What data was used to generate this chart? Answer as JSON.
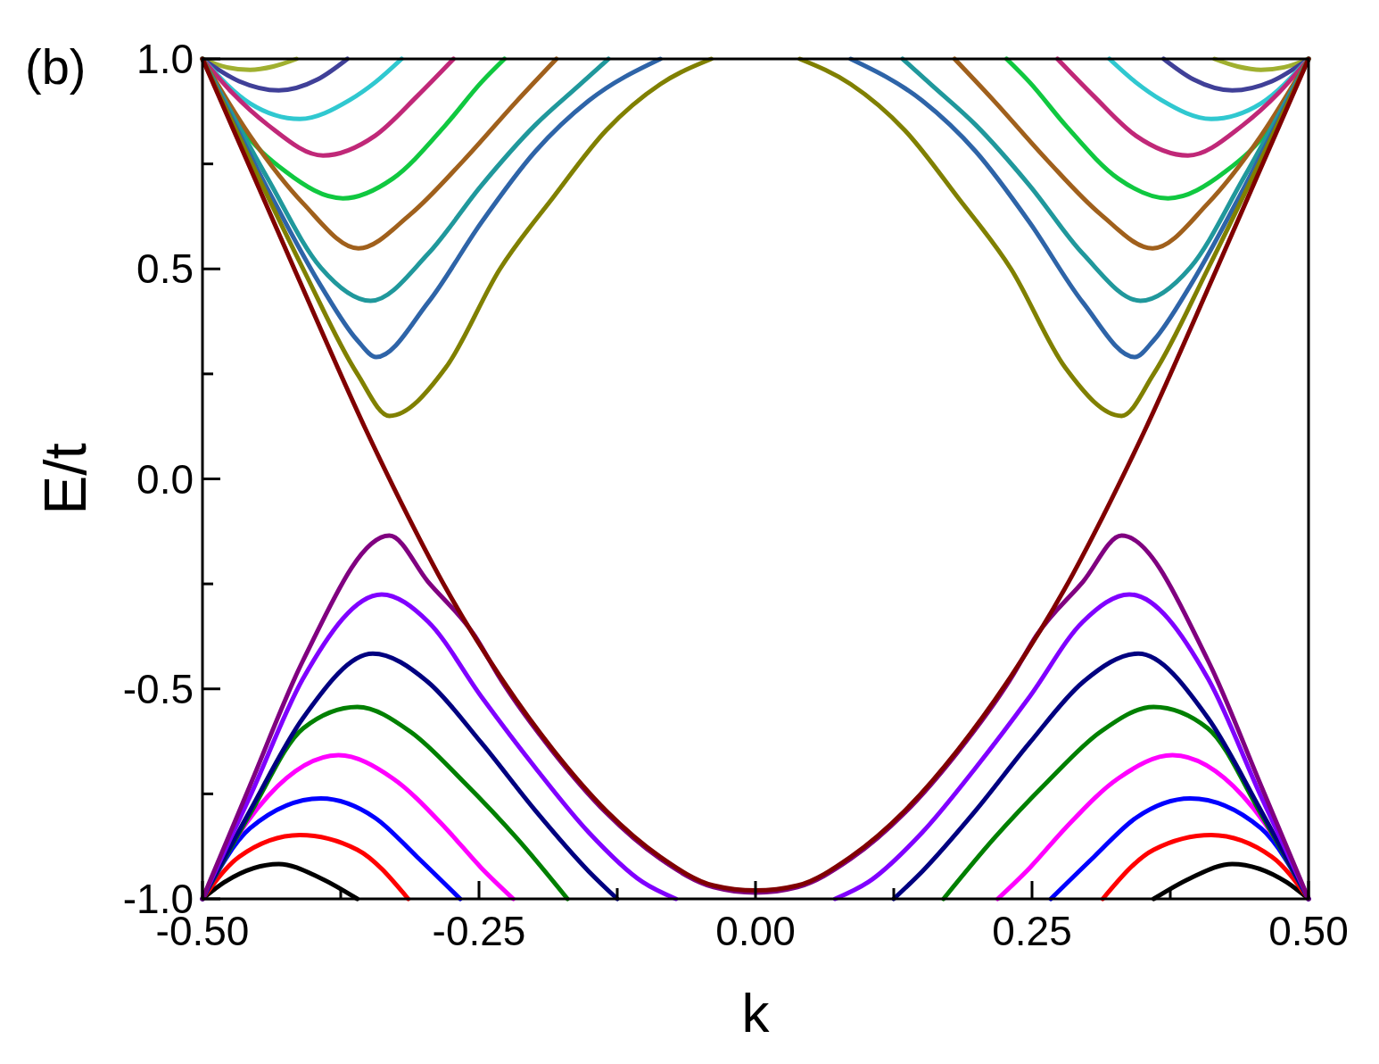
{
  "chart_data": {
    "type": "line",
    "xlabel": "k",
    "ylabel": "E/t",
    "annotations": [
      "(b)"
    ],
    "xlim": [
      -0.5,
      0.5
    ],
    "ylim": [
      -1,
      1
    ],
    "xticks": [
      {
        "value": -0.5,
        "label": "-0.50"
      },
      {
        "value": -0.375,
        "label": null
      },
      {
        "value": -0.25,
        "label": "-0.25"
      },
      {
        "value": -0.125,
        "label": null
      },
      {
        "value": 0,
        "label": "0.00"
      },
      {
        "value": 0.125,
        "label": null
      },
      {
        "value": 0.25,
        "label": "0.25"
      },
      {
        "value": 0.375,
        "label": null
      },
      {
        "value": 0.5,
        "label": "0.50"
      }
    ],
    "yticks": [
      {
        "value": -1,
        "label": "-1.0"
      },
      {
        "value": -0.75,
        "label": null
      },
      {
        "value": -0.5,
        "label": "-0.5"
      },
      {
        "value": -0.25,
        "label": null
      },
      {
        "value": 0,
        "label": "0.0"
      },
      {
        "value": 0.25,
        "label": null
      },
      {
        "value": 0.5,
        "label": "0.5"
      },
      {
        "value": 0.75,
        "label": null
      },
      {
        "value": 1,
        "label": "1.0"
      }
    ],
    "series": [
      {
        "color": "#a0b030",
        "x": [
          -0.5,
          -0.478,
          -0.457,
          -0.436,
          -0.415,
          0,
          0.415,
          0.436,
          0.457,
          0.478,
          0.5
        ],
        "values": [
          1,
          0.98,
          0.974,
          0.982,
          1,
          null,
          1,
          0.982,
          0.974,
          0.98,
          1
        ]
      },
      {
        "color": "#404098",
        "x": [
          -0.5,
          -0.467,
          -0.431,
          -0.396,
          -0.369,
          0,
          0.369,
          0.396,
          0.431,
          0.467,
          0.5
        ],
        "values": [
          1,
          0.947,
          0.925,
          0.951,
          1,
          null,
          1,
          0.951,
          0.925,
          0.947,
          1
        ]
      },
      {
        "color": "#30c8d0",
        "x": [
          -0.5,
          -0.457,
          -0.412,
          -0.367,
          -0.344,
          -0.32,
          0,
          0.32,
          0.344,
          0.367,
          0.412,
          0.457,
          0.5
        ],
        "values": [
          1,
          0.894,
          0.857,
          0.902,
          0.944,
          1,
          null,
          1,
          0.944,
          0.902,
          0.857,
          0.894,
          1
        ]
      },
      {
        "color": "#c02878",
        "x": [
          -0.5,
          -0.473,
          -0.441,
          -0.391,
          -0.344,
          -0.306,
          -0.273,
          0,
          0.273,
          0.306,
          0.344,
          0.391,
          0.441,
          0.473,
          0.5
        ],
        "values": [
          1,
          0.919,
          0.843,
          0.77,
          0.817,
          0.911,
          1,
          null,
          1,
          0.911,
          0.817,
          0.77,
          0.843,
          0.919,
          1
        ]
      },
      {
        "color": "#10c840",
        "x": [
          -0.5,
          -0.467,
          -0.425,
          -0.373,
          -0.328,
          -0.28,
          -0.248,
          -0.227,
          0,
          0.227,
          0.248,
          0.28,
          0.328,
          0.373,
          0.425,
          0.467,
          0.5
        ],
        "values": [
          1,
          0.843,
          0.732,
          0.668,
          0.715,
          0.843,
          0.944,
          1,
          null,
          1,
          0.944,
          0.843,
          0.715,
          0.668,
          0.732,
          0.843,
          1
        ]
      },
      {
        "color": "#a0601c",
        "x": [
          -0.5,
          -0.457,
          -0.409,
          -0.359,
          -0.312,
          -0.264,
          -0.215,
          -0.18,
          0,
          0.18,
          0.215,
          0.264,
          0.312,
          0.359,
          0.409,
          0.457,
          0.5
        ],
        "values": [
          1,
          0.817,
          0.656,
          0.549,
          0.63,
          0.758,
          0.902,
          1,
          null,
          1,
          0.902,
          0.758,
          0.63,
          0.549,
          0.656,
          0.817,
          1
        ]
      },
      {
        "color": "#20989c",
        "x": [
          -0.5,
          -0.441,
          -0.393,
          -0.348,
          -0.296,
          -0.248,
          -0.199,
          -0.16,
          -0.133,
          0,
          0.133,
          0.16,
          0.199,
          0.248,
          0.296,
          0.348,
          0.393,
          0.441,
          0.5
        ],
        "values": [
          1,
          0.715,
          0.503,
          0.424,
          0.536,
          0.698,
          0.843,
          0.936,
          1,
          null,
          1,
          0.936,
          0.843,
          0.698,
          0.536,
          0.424,
          0.503,
          0.715,
          1
        ]
      },
      {
        "color": "#2e64a8",
        "x": [
          -0.5,
          -0.441,
          -0.393,
          -0.36,
          -0.343,
          -0.296,
          -0.248,
          -0.199,
          -0.151,
          -0.086,
          0,
          0.086,
          0.151,
          0.199,
          0.248,
          0.296,
          0.343,
          0.36,
          0.393,
          0.441,
          0.5
        ],
        "values": [
          1,
          0.69,
          0.46,
          0.33,
          0.29,
          0.42,
          0.61,
          0.78,
          0.9,
          1,
          null,
          1,
          0.9,
          0.78,
          0.61,
          0.42,
          0.29,
          0.33,
          0.46,
          0.69,
          1
        ]
      },
      {
        "color": "#808000",
        "x": [
          -0.5,
          -0.457,
          -0.409,
          -0.36,
          -0.331,
          -0.28,
          -0.231,
          -0.183,
          -0.135,
          -0.086,
          -0.04,
          0,
          0.04,
          0.086,
          0.135,
          0.183,
          0.231,
          0.28,
          0.331,
          0.36,
          0.409,
          0.457,
          0.5
        ],
        "values": [
          1,
          0.76,
          0.5,
          0.25,
          0.15,
          0.265,
          0.5,
          0.67,
          0.83,
          0.94,
          1,
          null,
          1,
          0.94,
          0.83,
          0.67,
          0.5,
          0.265,
          0.15,
          0.25,
          0.5,
          0.76,
          1
        ]
      },
      {
        "color": "#000000",
        "x": [
          -0.5,
          -0.48,
          -0.431,
          -0.393,
          -0.36,
          0,
          0.36,
          0.393,
          0.431,
          0.48,
          0.5
        ],
        "values": [
          -1,
          -0.96,
          -0.917,
          -0.951,
          -1,
          null,
          -1,
          -0.951,
          -0.917,
          -0.96,
          -1
        ]
      },
      {
        "color": "#ff0000",
        "x": [
          -0.5,
          -0.467,
          -0.412,
          -0.36,
          -0.314,
          0,
          0.314,
          0.36,
          0.412,
          0.467,
          0.5
        ],
        "values": [
          -1,
          -0.9,
          -0.848,
          -0.883,
          -1,
          null,
          -1,
          -0.883,
          -0.848,
          -0.9,
          -1
        ]
      },
      {
        "color": "#0000ff",
        "x": [
          -0.5,
          -0.457,
          -0.393,
          -0.344,
          -0.306,
          -0.267,
          0,
          0.267,
          0.306,
          0.344,
          0.393,
          0.457,
          0.5
        ],
        "values": [
          -1,
          -0.832,
          -0.761,
          -0.807,
          -0.9,
          -1,
          null,
          -1,
          -0.9,
          -0.807,
          -0.761,
          -0.832,
          -1
        ]
      },
      {
        "color": "#ff00ff",
        "x": [
          -0.5,
          -0.48,
          -0.441,
          -0.377,
          -0.328,
          -0.28,
          -0.248,
          -0.219,
          0,
          0.219,
          0.248,
          0.28,
          0.328,
          0.377,
          0.441,
          0.48,
          0.5
        ],
        "values": [
          -1,
          -0.9,
          -0.756,
          -0.658,
          -0.713,
          -0.832,
          -0.926,
          -1,
          null,
          -1,
          -0.926,
          -0.832,
          -0.713,
          -0.658,
          -0.756,
          -0.9,
          -1
        ]
      },
      {
        "color": "#008000",
        "x": [
          -0.5,
          -0.457,
          -0.409,
          -0.36,
          -0.312,
          -0.264,
          -0.215,
          -0.17,
          0,
          0.17,
          0.215,
          0.264,
          0.312,
          0.36,
          0.409,
          0.457,
          0.5
        ],
        "values": [
          -1,
          -0.798,
          -0.594,
          -0.543,
          -0.602,
          -0.721,
          -0.858,
          -1,
          null,
          -1,
          -0.858,
          -0.721,
          -0.602,
          -0.543,
          -0.594,
          -0.798,
          -1
        ]
      },
      {
        "color": "#000080",
        "x": [
          -0.5,
          -0.457,
          -0.409,
          -0.346,
          -0.296,
          -0.248,
          -0.199,
          -0.151,
          -0.125,
          0,
          0.125,
          0.151,
          0.199,
          0.248,
          0.296,
          0.346,
          0.409,
          0.457,
          0.5
        ],
        "values": [
          -1,
          -0.79,
          -0.569,
          -0.416,
          -0.484,
          -0.628,
          -0.79,
          -0.934,
          -1,
          null,
          -1,
          -0.934,
          -0.79,
          -0.628,
          -0.484,
          -0.416,
          -0.569,
          -0.79,
          -1
        ]
      },
      {
        "color": "#8000ff",
        "x": [
          -0.5,
          -0.457,
          -0.409,
          -0.338,
          -0.296,
          -0.248,
          -0.199,
          -0.151,
          -0.102,
          -0.072,
          0,
          0.072,
          0.102,
          0.151,
          0.199,
          0.248,
          0.296,
          0.338,
          0.409,
          0.457,
          0.5
        ],
        "values": [
          -1,
          -0.756,
          -0.475,
          -0.275,
          -0.34,
          -0.518,
          -0.688,
          -0.841,
          -0.96,
          -1,
          null,
          -1,
          -0.96,
          -0.841,
          -0.688,
          -0.518,
          -0.34,
          -0.275,
          -0.475,
          -0.756,
          -1
        ]
      },
      {
        "color": "#800080",
        "x": [
          -0.5,
          -0.457,
          -0.409,
          -0.331,
          -0.296,
          -0.254,
          -0.231,
          -0.183,
          -0.135,
          -0.086,
          -0.038,
          0,
          0.038,
          0.086,
          0.135,
          0.183,
          0.231,
          0.254,
          0.296,
          0.331,
          0.409,
          0.457,
          0.5
        ],
        "values": [
          -1,
          -0.73,
          -0.432,
          -0.135,
          -0.245,
          -0.373,
          -0.475,
          -0.65,
          -0.795,
          -0.905,
          -0.972,
          -0.985,
          -0.972,
          -0.905,
          -0.795,
          -0.65,
          -0.475,
          -0.373,
          -0.245,
          -0.135,
          -0.432,
          -0.73,
          -1
        ]
      },
      {
        "color": "#800000",
        "x": [
          -0.5,
          -0.417,
          -0.351,
          -0.314,
          -0.28,
          -0.231,
          -0.183,
          -0.135,
          -0.086,
          -0.038,
          0,
          0.038,
          0.086,
          0.135,
          0.183,
          0.231,
          0.28,
          0.314,
          0.351,
          0.417,
          0.5
        ],
        "values": [
          1,
          0.5,
          0.11,
          -0.09,
          -0.26,
          -0.47,
          -0.645,
          -0.79,
          -0.9,
          -0.968,
          -0.98,
          -0.968,
          -0.9,
          -0.79,
          -0.645,
          -0.47,
          -0.26,
          -0.09,
          0.11,
          0.5,
          1
        ]
      }
    ]
  }
}
